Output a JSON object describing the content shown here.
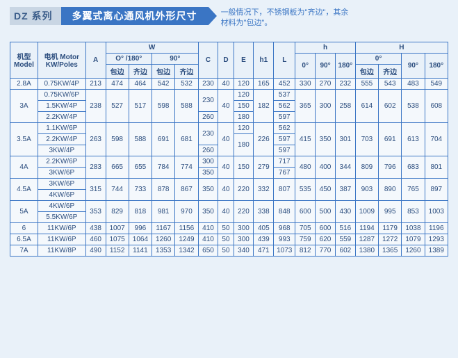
{
  "series_tag": "DZ 系列",
  "title": "多翼式离心通风机外形尺寸",
  "note_line1": "一般情况下，不锈钢板为\"齐边\"，其余",
  "note_line2": "材料为\"包边\"。",
  "headers": {
    "model": "机型\nModel",
    "motor": "电机 Motor\nKW/Poles",
    "A": "A",
    "W": "W",
    "W_o0_180": "O° /180°",
    "W_90": "90°",
    "W_bao": "包边",
    "W_qi": "齐边",
    "C": "C",
    "D": "D",
    "E": "E",
    "h1": "h1",
    "L": "L",
    "h": "h",
    "h_0": "0°",
    "h_90": "90°",
    "h_180": "180°",
    "H": "H",
    "H_0": "0°",
    "H_90": "90°",
    "H_180": "180°",
    "H_bao": "包边",
    "H_qi": "齐边"
  },
  "rows": [
    {
      "model": "2.8A",
      "motor": "0.75KW/4P",
      "A": "213",
      "w_o_b": "474",
      "w_o_q": "464",
      "w_90_b": "542",
      "w_90_q": "532",
      "C": "230",
      "D": "40",
      "E": "120",
      "h1": "165",
      "L": "452",
      "h0": "330",
      "h90": "270",
      "h180": "232",
      "H0_b": "555",
      "H0_q": "543",
      "H90": "483",
      "H180": "549"
    },
    {
      "model": "3A",
      "motors": [
        {
          "motor": "0.75KW/6P",
          "C": "230",
          "E": "120",
          "L": "537"
        },
        {
          "motor": "1.5KW/4P",
          "E": "150",
          "L": "562"
        },
        {
          "motor": "2.2KW/4P",
          "C": "260",
          "E": "180",
          "L": "597"
        }
      ],
      "A": "238",
      "w_o_b": "527",
      "w_o_q": "517",
      "w_90_b": "598",
      "w_90_q": "588",
      "D": "40",
      "h1": "182",
      "h0": "365",
      "h90": "300",
      "h180": "258",
      "H0_b": "614",
      "H0_q": "602",
      "H90": "538",
      "H180": "608"
    },
    {
      "model": "3.5A",
      "motors": [
        {
          "motor": "1.1KW/6P",
          "C": "230",
          "E": "120",
          "L": "562"
        },
        {
          "motor": "2.2KW/4P",
          "E": "180",
          "L": "597"
        },
        {
          "motor": "3KW/4P",
          "C": "260",
          "L": "597"
        }
      ],
      "A": "263",
      "w_o_b": "598",
      "w_o_q": "588",
      "w_90_b": "691",
      "w_90_q": "681",
      "D": "40",
      "h1": "226",
      "h0": "415",
      "h90": "350",
      "h180": "301",
      "H0_b": "703",
      "H0_q": "691",
      "H90": "613",
      "H180": "704"
    },
    {
      "model": "4A",
      "motors": [
        {
          "motor": "2.2KW/6P",
          "C": "300",
          "L": "717"
        },
        {
          "motor": "3KW/6P",
          "C": "350",
          "L": "767"
        }
      ],
      "A": "283",
      "w_o_b": "665",
      "w_o_q": "655",
      "w_90_b": "784",
      "w_90_q": "774",
      "D": "40",
      "E": "150",
      "h1": "279",
      "h0": "480",
      "h90": "400",
      "h180": "344",
      "H0_b": "809",
      "H0_q": "796",
      "H90": "683",
      "H180": "801"
    },
    {
      "model": "4.5A",
      "motors": [
        {
          "motor": "3KW/6P"
        },
        {
          "motor": "4KW/6P"
        }
      ],
      "A": "315",
      "w_o_b": "744",
      "w_o_q": "733",
      "w_90_b": "878",
      "w_90_q": "867",
      "C": "350",
      "D": "40",
      "E": "220",
      "h1": "332",
      "L": "807",
      "h0": "535",
      "h90": "450",
      "h180": "387",
      "H0_b": "903",
      "H0_q": "890",
      "H90": "765",
      "H180": "897"
    },
    {
      "model": "5A",
      "motors": [
        {
          "motor": "4KW/6P"
        },
        {
          "motor": "5.5KW/6P"
        }
      ],
      "A": "353",
      "w_o_b": "829",
      "w_o_q": "818",
      "w_90_b": "981",
      "w_90_q": "970",
      "C": "350",
      "D": "40",
      "E": "220",
      "h1": "338",
      "L": "848",
      "h0": "600",
      "h90": "500",
      "h180": "430",
      "H0_b": "1009",
      "H0_q": "995",
      "H90": "853",
      "H180": "1003"
    },
    {
      "model": "6",
      "motor": "11KW/6P",
      "A": "438",
      "w_o_b": "1007",
      "w_o_q": "996",
      "w_90_b": "1167",
      "w_90_q": "1156",
      "C": "410",
      "D": "50",
      "E": "300",
      "h1": "405",
      "L": "968",
      "h0": "705",
      "h90": "600",
      "h180": "516",
      "H0_b": "1194",
      "H0_q": "1179",
      "H90": "1038",
      "H180": "1196"
    },
    {
      "model": "6.5A",
      "motor": "11KW/6P",
      "A": "460",
      "w_o_b": "1075",
      "w_o_q": "1064",
      "w_90_b": "1260",
      "w_90_q": "1249",
      "C": "410",
      "D": "50",
      "E": "300",
      "h1": "439",
      "L": "993",
      "h0": "759",
      "h90": "620",
      "h180": "559",
      "H0_b": "1287",
      "H0_q": "1272",
      "H90": "1079",
      "H180": "1293"
    },
    {
      "model": "7A",
      "motor": "11KW/8P",
      "A": "490",
      "w_o_b": "1152",
      "w_o_q": "1141",
      "w_90_b": "1353",
      "w_90_q": "1342",
      "C": "650",
      "D": "50",
      "E": "340",
      "h1": "471",
      "L": "1073",
      "h0": "812",
      "h90": "770",
      "h180": "602",
      "H0_b": "1380",
      "H0_q": "1365",
      "H90": "1260",
      "H180": "1389"
    }
  ]
}
